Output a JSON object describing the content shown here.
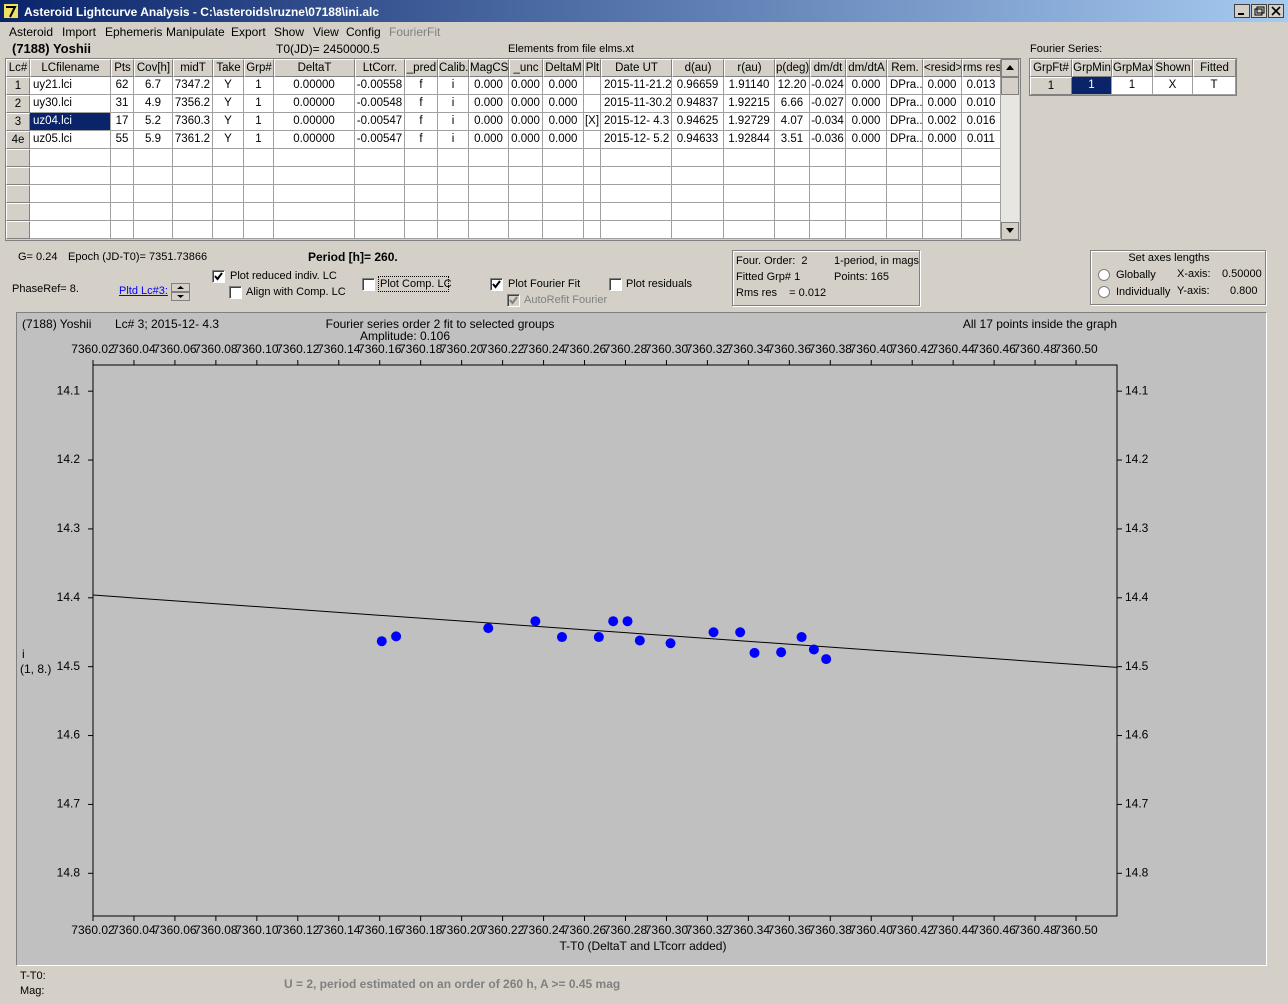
{
  "window": {
    "title": "Asteroid Lightcurve Analysis - C:\\asteroids\\ruzne\\07188\\ini.alc"
  },
  "menu": [
    "Asteroid",
    "Import",
    "Ephemeris",
    "Manipulate",
    "Export",
    "Show",
    "View",
    "Config",
    "FourierFit"
  ],
  "header": {
    "object": "(7188) Yoshii",
    "t0": "T0(JD)= 2450000.5",
    "elements": "Elements from file elms.xt"
  },
  "table": {
    "columns": [
      "Lc#",
      "LCfilename",
      "Pts",
      "Cov[h]",
      "midT",
      "Take",
      "Grp#",
      "DeltaT",
      "LtCorr.",
      "_pred",
      "Calib.",
      "MagCS",
      "_unc",
      "DeltaM",
      "Plt",
      "Date UT",
      "d(au)",
      "r(au)",
      "p(deg)",
      "dm/dt",
      "dm/dtA",
      "Rem.",
      "<resid>",
      "rms res"
    ],
    "rows": [
      [
        "1",
        "uy21.lci",
        "62",
        "6.7",
        "7347.2",
        "Y",
        "1",
        "0.00000",
        "-0.00558",
        "f",
        "i",
        "0.000",
        "0.000",
        "0.000",
        null,
        "2015-11-21.2",
        "0.96659",
        "1.91140",
        "12.20",
        "-0.024",
        "0.000",
        "DPra...",
        "0.000",
        "0.013"
      ],
      [
        "2",
        "uy30.lci",
        "31",
        "4.9",
        "7356.2",
        "Y",
        "1",
        "0.00000",
        "-0.00548",
        "f",
        "i",
        "0.000",
        "0.000",
        "0.000",
        null,
        "2015-11-30.2",
        "0.94837",
        "1.92215",
        "6.66",
        "-0.027",
        "0.000",
        "DPra...",
        "0.000",
        "0.010"
      ],
      [
        "3",
        "uz04.lci",
        "17",
        "5.2",
        "7360.3",
        "Y",
        "1",
        "0.00000",
        "-0.00547",
        "f",
        "i",
        "0.000",
        "0.000",
        "0.000",
        "[X]",
        "2015-12- 4.3",
        "0.94625",
        "1.92729",
        "4.07",
        "-0.034",
        "0.000",
        "DPra...",
        "0.002",
        "0.016"
      ],
      [
        "4e",
        "uz05.lci",
        "55",
        "5.9",
        "7361.2",
        "Y",
        "1",
        "0.00000",
        "-0.00547",
        "f",
        "i",
        "0.000",
        "0.000",
        "0.000",
        null,
        "2015-12- 5.2",
        "0.94633",
        "1.92844",
        "3.51",
        "-0.036",
        "0.000",
        "DPra...",
        "0.000",
        "0.011"
      ]
    ]
  },
  "fourier": {
    "title": "Fourier Series:",
    "columns": [
      "GrpFt#",
      "GrpMin",
      "GrpMax",
      "Shown",
      "Fitted"
    ],
    "rows": [
      [
        "1",
        "1",
        "1",
        "X",
        "T"
      ]
    ]
  },
  "controls": {
    "g": "G= 0.24",
    "epoch": "Epoch (JD-T0)= 7351.73866",
    "period": "Period [h]= 260.",
    "phase_ref": "PhaseRef= 8.",
    "pltd": "Pltd Lc#3:",
    "plot_reduced": "Plot reduced indiv. LC",
    "align": "Align with Comp. LC",
    "plot_comp": "Plot Comp. LC",
    "plot_fourier": "Plot Fourier Fit",
    "autorefit": "AutoRefit Fourier",
    "plot_residuals": "Plot residuals"
  },
  "info": {
    "order": "Four. Order:  2",
    "mode": "1-period, in mags",
    "fitted": "Fitted Grp# 1",
    "points": "Points: 165",
    "rms": "Rms res    = 0.012"
  },
  "axes_box": {
    "title": "Set axes lengths",
    "globally": "Globally",
    "individually": "Individually",
    "x_label": "X-axis:",
    "x_value": "0.50000",
    "y_label": "Y-axis:",
    "y_value": "0.800"
  },
  "chart_data": {
    "type": "scatter",
    "object_label": "(7188) Yoshii",
    "lc_label": "Lc# 3; 2015-12- 4.3",
    "title": "Fourier series order 2 fit to selected groups",
    "subtitle": "Amplitude: 0.106",
    "annotation": "All 17 points inside the graph",
    "x_label": "T-T0 (DeltaT and LTcorr added)",
    "y_label": "i",
    "y_label_note": "(1, 8.)",
    "x": [
      7360.161,
      7360.168,
      7360.213,
      7360.236,
      7360.249,
      7360.267,
      7360.274,
      7360.281,
      7360.287,
      7360.302,
      7360.323,
      7360.336,
      7360.343,
      7360.356,
      7360.366,
      7360.372,
      7360.378
    ],
    "values": [
      14.463,
      14.456,
      14.444,
      14.434,
      14.457,
      14.457,
      14.434,
      14.434,
      14.462,
      14.466,
      14.45,
      14.45,
      14.48,
      14.479,
      14.457,
      14.475,
      14.489
    ],
    "color": "#0000ff",
    "fit": {
      "x": [
        7360.02,
        7360.52
      ],
      "y": [
        14.396,
        14.501
      ],
      "color": "#000000"
    },
    "xlim": [
      7360.02,
      7360.52
    ],
    "ylim": [
      14.062,
      14.862
    ],
    "y_inverted": true,
    "xticks": [
      7360.02,
      7360.04,
      7360.06,
      7360.08,
      {
        "value": 7360.1,
        "label": "7360.10"
      },
      7360.12,
      7360.14,
      7360.16,
      7360.18,
      {
        "value": 7360.2,
        "label": "7360.20"
      },
      7360.22,
      7360.24,
      7360.26,
      7360.28,
      {
        "value": 7360.3,
        "label": "7360.30"
      },
      7360.32,
      7360.34,
      7360.36,
      7360.38,
      {
        "value": 7360.4,
        "label": "7360.40"
      },
      7360.42,
      7360.44,
      7360.46,
      7360.48,
      {
        "value": 7360.5,
        "label": "7360.50"
      }
    ],
    "yticks": [
      14.1,
      14.2,
      14.3,
      14.4,
      14.5,
      14.6,
      14.7,
      14.8
    ]
  },
  "status": {
    "t_t0": "T-T0:",
    "mag": "Mag:",
    "message": "U = 2, period estimated on an order of 260 h, A >= 0.45 mag"
  }
}
